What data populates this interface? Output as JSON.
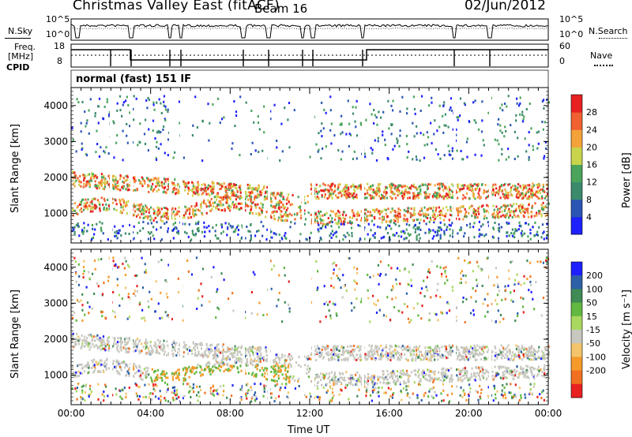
{
  "header": {
    "title": "Christmas Valley East (fitACF)",
    "beam": "Beam 16",
    "date": "02/Jun/2012",
    "mode": "normal (fast) 151 IF"
  },
  "noise_panel": {
    "left_label": "N.Sky",
    "left_ticks": [
      "10^5",
      "10^0"
    ],
    "right_label": "N.Search",
    "right_ticks": [
      "10^5",
      "10^0"
    ]
  },
  "freq_panel": {
    "left_label_1": "Freq.",
    "left_label_2": "[MHz]",
    "left_ticks": [
      "18",
      "8"
    ],
    "right_label": "Nave",
    "right_ticks": [
      "60",
      "0"
    ]
  },
  "cpid_label": "CPID",
  "chart_data": [
    {
      "type": "heatmap",
      "name": "power",
      "ylabel": "Slant Range [km]",
      "xlabel": "Time UT",
      "x_ticks": [
        "00:00",
        "04:00",
        "08:00",
        "12:00",
        "16:00",
        "20:00",
        "00:00"
      ],
      "y_ticks": [
        "1000",
        "2000",
        "3000",
        "4000"
      ],
      "ylim": [
        180,
        4500
      ],
      "colorbar_label": "Power [dB]",
      "colorbar_ticks": [
        "4",
        "8",
        "12",
        "16",
        "20",
        "24",
        "28"
      ],
      "colors": [
        "#1e20ff",
        "#2b55b5",
        "#3b8a6c",
        "#4aa45c",
        "#c8d44c",
        "#f4a23a",
        "#f06030",
        "#e82020"
      ]
    },
    {
      "type": "heatmap",
      "name": "velocity",
      "ylabel": "Slant Range [km]",
      "xlabel": "Time UT",
      "x_ticks": [
        "00:00",
        "04:00",
        "08:00",
        "12:00",
        "16:00",
        "20:00",
        "00:00"
      ],
      "y_ticks": [
        "1000",
        "2000",
        "3000",
        "4000"
      ],
      "ylim": [
        180,
        4500
      ],
      "colorbar_label": "Velocity [m s⁻¹]",
      "colorbar_ticks": [
        "200",
        "100",
        "50",
        "15",
        "-15",
        "-50",
        "-100",
        "-200"
      ],
      "colors": [
        "#1e20ff",
        "#2e60a8",
        "#3f8a55",
        "#62b840",
        "#a8d860",
        "#c8c8c0",
        "#f3c46b",
        "#f59a2a",
        "#f07020",
        "#e82020"
      ]
    }
  ]
}
